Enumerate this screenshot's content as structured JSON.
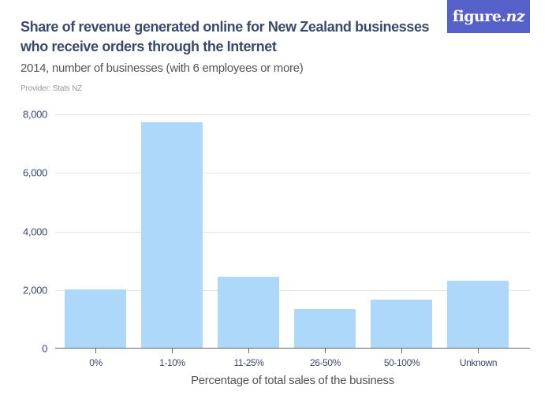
{
  "header": {
    "title": "Share of revenue generated online for New Zealand businesses who receive orders through the Internet",
    "subtitle": "2014, number of businesses (with 6 employees or more)",
    "provider": "Provider: Stats NZ",
    "logo_main": "figure.",
    "logo_suffix": "nz"
  },
  "colors": {
    "bar": "#aed8fa",
    "title": "#3a4a6b",
    "logo_bg": "#5560c9"
  },
  "chart_data": {
    "type": "bar",
    "title": "Share of revenue generated online for New Zealand businesses who receive orders through the Internet",
    "subtitle": "2014, number of businesses (with 6 employees or more)",
    "xlabel": "Percentage of total sales of the business",
    "ylabel": "",
    "categories": [
      "0%",
      "1-10%",
      "11-25%",
      "26-50%",
      "50-100%",
      "Unknown"
    ],
    "values": [
      2030,
      7730,
      2460,
      1350,
      1680,
      2320
    ],
    "ylim": [
      0,
      8000
    ],
    "yticks": [
      0,
      2000,
      4000,
      6000,
      8000
    ],
    "ytick_labels": [
      "0",
      "2,000",
      "4,000",
      "6,000",
      "8,000"
    ],
    "grid": true,
    "legend": null
  }
}
